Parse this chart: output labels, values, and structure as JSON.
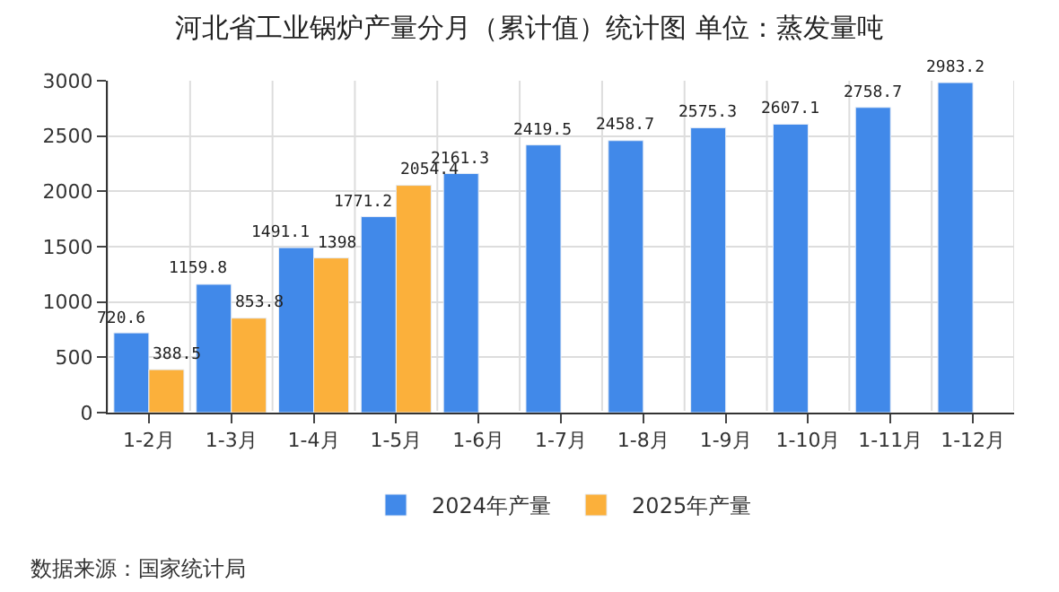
{
  "chart_data": {
    "type": "bar",
    "title": "河北省工业锅炉产量分月（累计值）统计图 单位：蒸发量吨",
    "categories": [
      "1-2月",
      "1-3月",
      "1-4月",
      "1-5月",
      "1-6月",
      "1-7月",
      "1-8月",
      "1-9月",
      "1-10月",
      "1-11月",
      "1-12月"
    ],
    "series": [
      {
        "name": "2024年产量",
        "color": "#4189e9",
        "values": [
          720.6,
          1159.8,
          1491.1,
          1771.2,
          2161.3,
          2419.5,
          2458.7,
          2575.3,
          2607.1,
          2758.7,
          2983.2
        ]
      },
      {
        "name": "2025年产量",
        "color": "#fbb03b",
        "values": [
          388.5,
          853.8,
          1398,
          2054.4,
          null,
          null,
          null,
          null,
          null,
          null,
          null
        ]
      }
    ],
    "ylim": [
      0,
      3000
    ],
    "yticks": [
      0,
      500,
      1000,
      1500,
      2000,
      2500,
      3000
    ],
    "grid": true,
    "legend": "bottom",
    "data_labels": true,
    "annotations": [
      "数据来源：国家统计局"
    ]
  }
}
